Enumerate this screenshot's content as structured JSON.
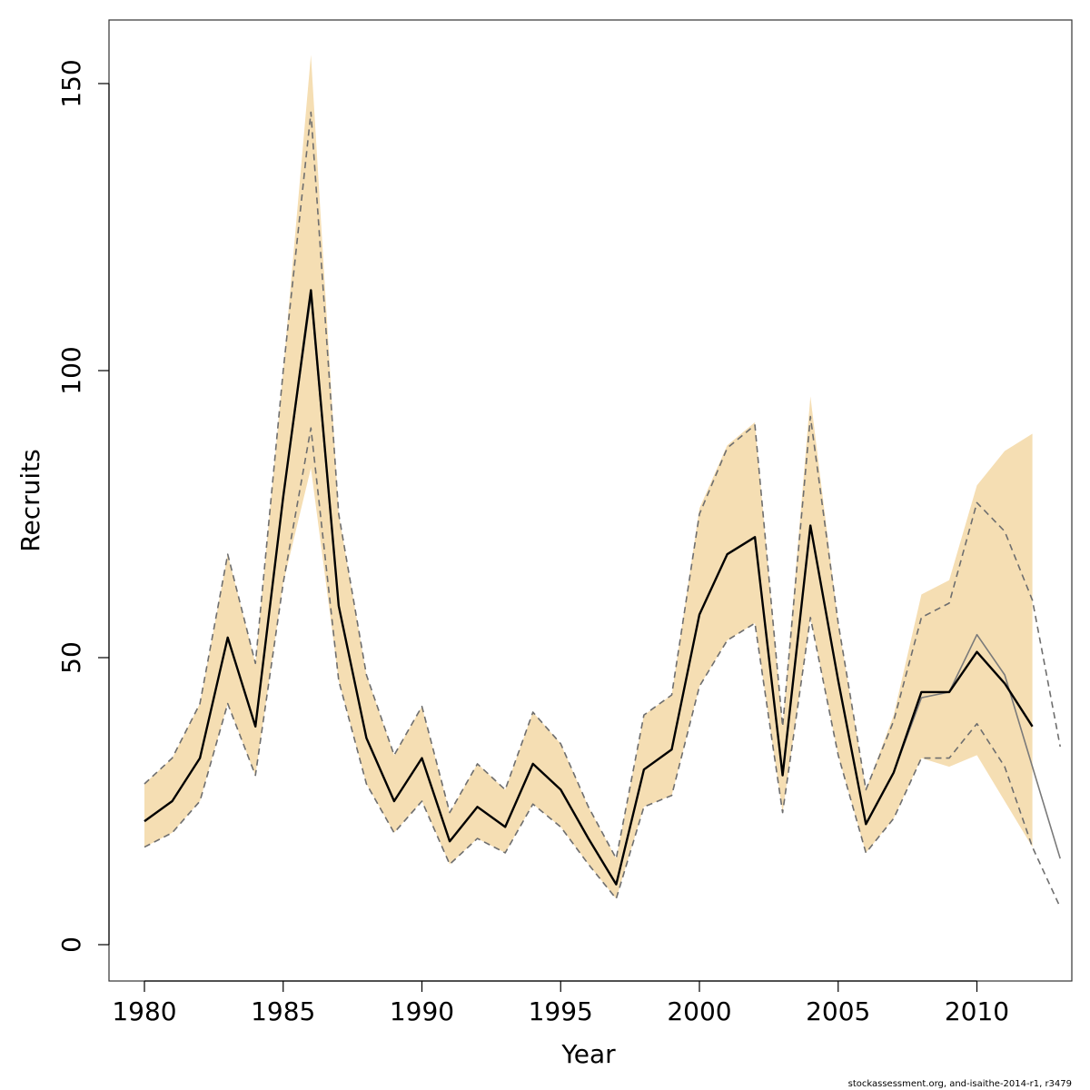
{
  "chart_data": {
    "type": "line",
    "xlabel": "Year",
    "ylabel": "Recruits",
    "xlim": [
      1977.5,
      2014.0
    ],
    "ylim": [
      -6,
      162
    ],
    "x_ticks": [
      1980,
      1985,
      1990,
      1995,
      2000,
      2005,
      2010
    ],
    "y_ticks": [
      0,
      50,
      100,
      150
    ],
    "grid": false,
    "legend": "none",
    "colors": {
      "band": "#f5deb3",
      "main_line": "#000000",
      "dashed_line": "#6e6e6e",
      "thin_line": "#7a7a7a",
      "box": "#333333"
    },
    "series": [
      {
        "role": "band",
        "x": [
          1980,
          1981,
          1982,
          1983,
          1984,
          1985,
          1986,
          1987,
          1988,
          1989,
          1990,
          1991,
          1992,
          1993,
          1994,
          1995,
          1996,
          1997,
          1998,
          1999,
          2000,
          2001,
          2002,
          2003,
          2004,
          2005,
          2006,
          2007,
          2008,
          2009,
          2010,
          2011,
          2012
        ],
        "upper": [
          28,
          32.5,
          42,
          68,
          49,
          100,
          155,
          75,
          47,
          33,
          41.5,
          23,
          31.5,
          27,
          40.5,
          35,
          24,
          15,
          40,
          43.5,
          76,
          87,
          91,
          38,
          95.5,
          56,
          27,
          40,
          61,
          63.5,
          80,
          86,
          89
        ],
        "lower": [
          17,
          19.5,
          25,
          42,
          29.5,
          63,
          83,
          46,
          28,
          19.5,
          25,
          14,
          18.5,
          16,
          24.5,
          20.5,
          14,
          8,
          24,
          26,
          45,
          53,
          56,
          23,
          57,
          33,
          16,
          22,
          32.5,
          31,
          33,
          25,
          17
        ]
      },
      {
        "role": "estimate",
        "x": [
          1980,
          1981,
          1982,
          1983,
          1984,
          1985,
          1986,
          1987,
          1988,
          1989,
          1990,
          1991,
          1992,
          1993,
          1994,
          1995,
          1996,
          1997,
          1998,
          1999,
          2000,
          2001,
          2002,
          2003,
          2004,
          2005,
          2006,
          2007,
          2008,
          2009,
          2010,
          2011,
          2012
        ],
        "values": [
          21.5,
          25,
          32.5,
          53.5,
          38,
          78,
          114,
          59,
          36,
          25,
          32.5,
          18,
          24,
          20.5,
          31.5,
          27,
          18.5,
          10.5,
          30.5,
          34,
          57.5,
          68,
          71,
          29.5,
          73,
          46,
          21,
          30,
          44,
          44,
          51,
          45.5,
          38
        ]
      },
      {
        "role": "upper-dashed",
        "x": [
          1980,
          1981,
          1982,
          1983,
          1984,
          1985,
          1986,
          1987,
          1988,
          1989,
          1990,
          1991,
          1992,
          1993,
          1994,
          1995,
          1996,
          1997,
          1998,
          1999,
          2000,
          2001,
          2002,
          2003,
          2004,
          2005,
          2006,
          2007,
          2008,
          2009,
          2010,
          2011,
          2012,
          2013
        ],
        "values": [
          28,
          32.5,
          42,
          68,
          49,
          100,
          145,
          75,
          47,
          33,
          41.5,
          23,
          31.5,
          27,
          40.5,
          35,
          24,
          15,
          40,
          43.5,
          75,
          86.5,
          90.5,
          38,
          92,
          56,
          27,
          39,
          57,
          59.5,
          77,
          72,
          60,
          34.5
        ]
      },
      {
        "role": "lower-dashed",
        "x": [
          1980,
          1981,
          1982,
          1983,
          1984,
          1985,
          1986,
          1987,
          1988,
          1989,
          1990,
          1991,
          1992,
          1993,
          1994,
          1995,
          1996,
          1997,
          1998,
          1999,
          2000,
          2001,
          2002,
          2003,
          2004,
          2005,
          2006,
          2007,
          2008,
          2009,
          2010,
          2011,
          2012,
          2013
        ],
        "values": [
          17,
          19.5,
          25,
          42,
          29.5,
          63,
          90,
          46,
          28,
          19.5,
          25,
          14,
          18.5,
          16,
          24.5,
          20.5,
          14,
          8,
          24,
          26,
          45,
          53,
          56,
          23,
          57,
          33,
          16,
          22,
          32.5,
          32.5,
          38.5,
          31,
          17,
          6.5
        ]
      },
      {
        "role": "thin-estimate",
        "x": [
          1980,
          1981,
          1982,
          1983,
          1984,
          1985,
          1986,
          1987,
          1988,
          1989,
          1990,
          1991,
          1992,
          1993,
          1994,
          1995,
          1996,
          1997,
          1998,
          1999,
          2000,
          2001,
          2002,
          2003,
          2004,
          2005,
          2006,
          2007,
          2008,
          2009,
          2010,
          2011,
          2012,
          2013
        ],
        "values": [
          21.5,
          25,
          32.5,
          53.5,
          38,
          78,
          113,
          59,
          36,
          25,
          32.5,
          18,
          24,
          20.5,
          31.5,
          27,
          18.5,
          10.5,
          30.5,
          34,
          57.5,
          68,
          71,
          29.5,
          73,
          46,
          21,
          30,
          43,
          44,
          54,
          47,
          31,
          15
        ]
      }
    ]
  },
  "credit": "stockassessment.org, and-isaithe-2014-r1, r3479"
}
